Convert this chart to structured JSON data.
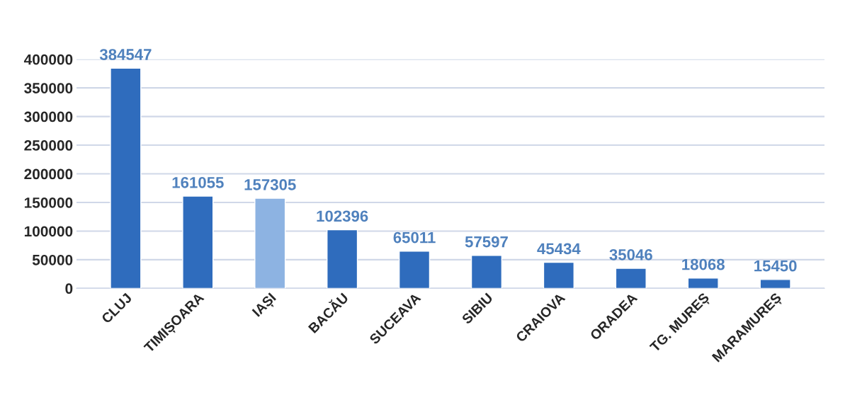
{
  "chart_data": {
    "type": "bar",
    "categories": [
      "CLUJ",
      "TIMIȘOARA",
      "IAȘI",
      "BACĂU",
      "SUCEAVA",
      "SIBIU",
      "CRAIOVA",
      "ORADEA",
      "TG. MUREȘ",
      "MARAMUREȘ"
    ],
    "values": [
      384547,
      161055,
      157305,
      102396,
      65011,
      57597,
      45434,
      35046,
      18068,
      15450
    ],
    "colors": [
      "#2f6cbd",
      "#2f6cbd",
      "#8db3e2",
      "#2f6cbd",
      "#2f6cbd",
      "#2f6cbd",
      "#2f6cbd",
      "#2f6cbd",
      "#2f6cbd",
      "#2f6cbd"
    ],
    "ylim": [
      0,
      400000
    ],
    "yticks": [
      0,
      50000,
      100000,
      150000,
      200000,
      250000,
      300000,
      350000,
      400000
    ],
    "grid": "y",
    "data_labels": true
  }
}
